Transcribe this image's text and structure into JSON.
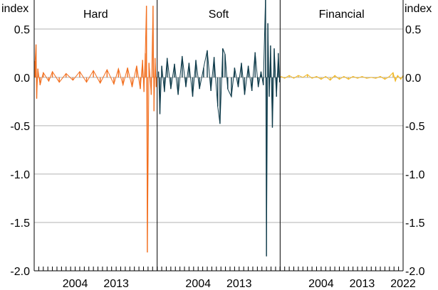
{
  "chart_data": {
    "type": "line",
    "left_unit": "index",
    "right_unit": "index",
    "ylim": [
      -2.0,
      0.8
    ],
    "yticks": [
      0.5,
      0.0,
      -0.5,
      -1.0,
      -1.5,
      -2.0
    ],
    "ytick_labels": [
      "0.5",
      "0.0",
      "-0.5",
      "-1.0",
      "-1.5",
      "-2.0"
    ],
    "grid": true,
    "colors": {
      "hard": "#f26f1f",
      "soft": "#0f3b4a",
      "financial": "#f1b724",
      "grid": "#b3b3b3",
      "axis": "#000000"
    },
    "panels": [
      {
        "title": "Hard",
        "series_color_key": "hard",
        "xlim": [
          1995,
          2022
        ],
        "xtick_labels": [
          "2004",
          "2013"
        ],
        "xtick_values": [
          2004,
          2013
        ],
        "points": [
          [
            1995.2,
            0.17
          ],
          [
            1995.4,
            0.34
          ],
          [
            1995.55,
            -0.22
          ],
          [
            1995.8,
            0.09
          ],
          [
            1996.3,
            -0.08
          ],
          [
            1997.0,
            0.05
          ],
          [
            1998.2,
            -0.04
          ],
          [
            1999.0,
            0.06
          ],
          [
            2000.5,
            -0.05
          ],
          [
            2002.0,
            0.04
          ],
          [
            2003.5,
            -0.03
          ],
          [
            2005.0,
            0.06
          ],
          [
            2006.5,
            -0.05
          ],
          [
            2008.0,
            0.07
          ],
          [
            2009.5,
            -0.06
          ],
          [
            2011.0,
            0.08
          ],
          [
            2012.5,
            -0.07
          ],
          [
            2013.5,
            0.09
          ],
          [
            2014.5,
            -0.08
          ],
          [
            2015.5,
            0.1
          ],
          [
            2016.5,
            -0.1
          ],
          [
            2017.5,
            0.12
          ],
          [
            2018.3,
            -0.12
          ],
          [
            2018.8,
            0.18
          ],
          [
            2019.1,
            -0.15
          ],
          [
            2019.4,
            0.25
          ],
          [
            2019.65,
            0.74
          ],
          [
            2019.85,
            -1.81
          ],
          [
            2020.2,
            0.15
          ],
          [
            2020.7,
            -0.18
          ],
          [
            2021.1,
            0.74
          ],
          [
            2021.3,
            -0.35
          ],
          [
            2021.55,
            0.2
          ],
          [
            2021.8,
            -0.1
          ]
        ]
      },
      {
        "title": "Soft",
        "series_color_key": "soft",
        "xlim": [
          1995,
          2022
        ],
        "xtick_labels": [
          "2004",
          "2013"
        ],
        "xtick_values": [
          2004,
          2013
        ],
        "points": [
          [
            1995.3,
            0.06
          ],
          [
            1995.6,
            -0.38
          ],
          [
            1996.0,
            0.12
          ],
          [
            1996.6,
            -0.15
          ],
          [
            1997.2,
            0.2
          ],
          [
            1998.0,
            -0.12
          ],
          [
            1998.8,
            0.14
          ],
          [
            1999.6,
            -0.18
          ],
          [
            2000.5,
            0.22
          ],
          [
            2001.3,
            -0.1
          ],
          [
            2002.0,
            0.15
          ],
          [
            2002.8,
            -0.2
          ],
          [
            2003.5,
            0.18
          ],
          [
            2004.3,
            -0.12
          ],
          [
            2005.2,
            0.1
          ],
          [
            2006.0,
            0.28
          ],
          [
            2006.8,
            -0.14
          ],
          [
            2007.5,
            0.21
          ],
          [
            2008.3,
            -0.3
          ],
          [
            2008.8,
            -0.48
          ],
          [
            2009.4,
            0.3
          ],
          [
            2009.9,
            0.24
          ],
          [
            2010.5,
            -0.12
          ],
          [
            2011.3,
            -0.2
          ],
          [
            2012.0,
            0.1
          ],
          [
            2012.8,
            -0.1
          ],
          [
            2013.5,
            0.15
          ],
          [
            2014.2,
            -0.18
          ],
          [
            2015.0,
            0.12
          ],
          [
            2015.8,
            -0.14
          ],
          [
            2016.5,
            0.26
          ],
          [
            2017.2,
            -0.1
          ],
          [
            2017.8,
            0.06
          ],
          [
            2018.3,
            -0.08
          ],
          [
            2018.8,
            0.85
          ],
          [
            2019.0,
            -1.85
          ],
          [
            2019.3,
            0.56
          ],
          [
            2019.6,
            -0.2
          ],
          [
            2019.9,
            0.33
          ],
          [
            2020.3,
            -0.52
          ],
          [
            2020.7,
            0.3
          ],
          [
            2021.2,
            -0.2
          ],
          [
            2021.6,
            0.25
          ],
          [
            2021.9,
            -0.05
          ]
        ]
      },
      {
        "title": "Financial",
        "series_color_key": "financial",
        "xlim": [
          1995,
          2022
        ],
        "xtick_labels": [
          "2004",
          "2013",
          "2022"
        ],
        "xtick_values": [
          2004,
          2013,
          2022
        ],
        "points": [
          [
            1995.2,
            0.01
          ],
          [
            1996.0,
            -0.01
          ],
          [
            1997.0,
            0.02
          ],
          [
            1998.0,
            -0.01
          ],
          [
            1999.0,
            0.02
          ],
          [
            2000.0,
            0.0
          ],
          [
            2001.0,
            0.03
          ],
          [
            2002.0,
            -0.01
          ],
          [
            2003.0,
            0.01
          ],
          [
            2004.0,
            -0.02
          ],
          [
            2005.0,
            0.01
          ],
          [
            2006.0,
            -0.03
          ],
          [
            2007.0,
            0.02
          ],
          [
            2008.0,
            -0.02
          ],
          [
            2009.0,
            0.01
          ],
          [
            2010.0,
            -0.02
          ],
          [
            2011.0,
            0.01
          ],
          [
            2012.0,
            -0.01
          ],
          [
            2013.0,
            0.01
          ],
          [
            2014.0,
            -0.01
          ],
          [
            2015.0,
            0.0
          ],
          [
            2016.0,
            -0.01
          ],
          [
            2017.0,
            0.01
          ],
          [
            2018.0,
            -0.02
          ],
          [
            2019.0,
            0.01
          ],
          [
            2019.8,
            0.05
          ],
          [
            2020.3,
            -0.04
          ],
          [
            2020.8,
            0.02
          ],
          [
            2021.5,
            -0.02
          ],
          [
            2022.0,
            0.02
          ]
        ]
      }
    ]
  }
}
